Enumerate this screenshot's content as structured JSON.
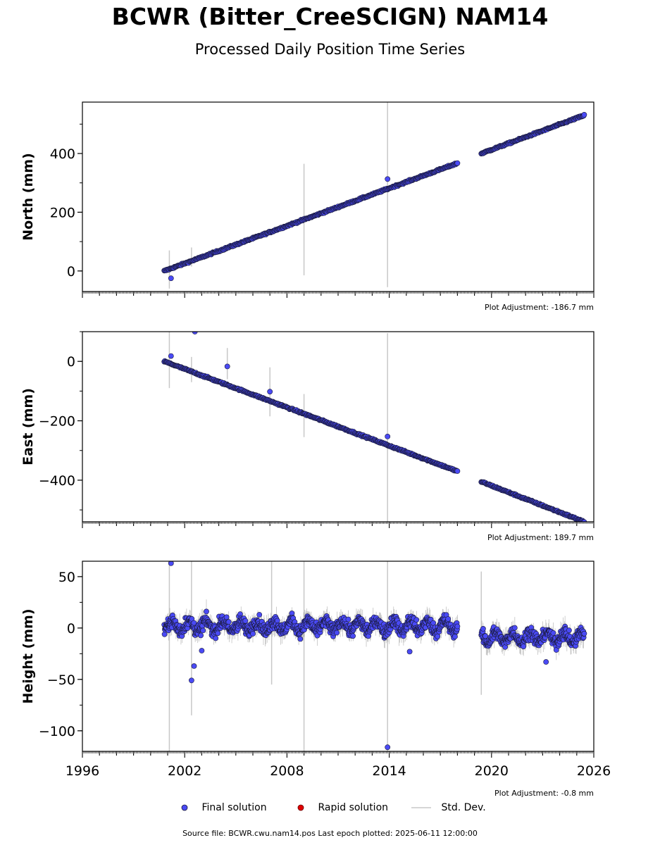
{
  "title": "BCWR (Bitter_CreeSCIGN) NAM14",
  "subtitle": "Processed Daily Position Time Series",
  "colors": {
    "final": "#4a4af5",
    "rapid": "#e00000",
    "stddev": "#c8c8c8",
    "edge": "#1a1a3a"
  },
  "legend": {
    "final_label": "Final solution",
    "rapid_label": "Rapid solution",
    "stddev_label": "Std. Dev."
  },
  "source_text": "Source file: BCWR.cwu.nam14.pos  Last epoch plotted: 2025-06-11 12:00:00",
  "chart_data": [
    {
      "type": "scatter",
      "ylabel": "North (mm)",
      "adjustment": "Plot Adjustment: -186.7 mm",
      "xlim": [
        1996,
        2026
      ],
      "ylim": [
        -70,
        575
      ],
      "yticks": [
        0,
        200,
        400
      ],
      "ytick_labels": [
        "0",
        "200",
        "400"
      ],
      "gap": [
        2018.0,
        2019.4
      ],
      "trend": {
        "start": [
          2000.8,
          0
        ],
        "end": [
          2025.44,
          530
        ],
        "rate_break": [
          [
            2018.0,
            367
          ],
          [
            2019.4,
            400
          ]
        ]
      },
      "outliers": [
        [
          2001.2,
          -25
        ],
        [
          2013.9,
          313
        ]
      ],
      "errorbars": [
        [
          2001.1,
          -60,
          70
        ],
        [
          2002.4,
          15,
          80
        ],
        [
          2009.0,
          -15,
          365
        ],
        [
          2013.9,
          -55,
          580
        ]
      ]
    },
    {
      "type": "scatter",
      "ylabel": "East (mm)",
      "adjustment": "Plot Adjustment: 189.7 mm",
      "xlim": [
        1996,
        2026
      ],
      "ylim": [
        -540,
        100
      ],
      "yticks": [
        -400,
        -200,
        0
      ],
      "ytick_labels": [
        "−400",
        "−200",
        "0"
      ],
      "gap": [
        2018.0,
        2019.4
      ],
      "trend": {
        "start": [
          2000.8,
          0
        ],
        "end": [
          2025.44,
          -540
        ],
        "rate_break": [
          [
            2018.0,
            -370
          ],
          [
            2019.4,
            -405
          ]
        ]
      },
      "outliers": [
        [
          2001.2,
          18
        ],
        [
          2002.6,
          100
        ],
        [
          2004.5,
          -17
        ],
        [
          2007.0,
          -102
        ],
        [
          2013.9,
          -253
        ]
      ],
      "errorbars": [
        [
          2001.1,
          -90,
          100
        ],
        [
          2002.4,
          -70,
          15
        ],
        [
          2004.5,
          -60,
          45
        ],
        [
          2007.0,
          -185,
          -20
        ],
        [
          2009.0,
          -255,
          -110
        ],
        [
          2013.9,
          -540,
          95
        ]
      ]
    },
    {
      "type": "scatter",
      "ylabel": "Height (mm)",
      "adjustment": "Plot Adjustment: -0.8 mm",
      "xlim": [
        1996,
        2026
      ],
      "ylim": [
        -120,
        65
      ],
      "yticks": [
        -100,
        -50,
        0,
        50
      ],
      "ytick_labels": [
        "−100",
        "−50",
        "0",
        "50"
      ],
      "xticks": [
        1996,
        2002,
        2008,
        2014,
        2020,
        2026
      ],
      "xtick_labels": [
        "1996",
        "2002",
        "2008",
        "2014",
        "2020",
        "2026"
      ],
      "gap": [
        2018.0,
        2019.4
      ],
      "segments": [
        [
          2000.8,
          2018.0,
          2
        ],
        [
          2019.4,
          2025.44,
          -9
        ]
      ],
      "outliers": [
        [
          2001.2,
          63
        ],
        [
          2002.4,
          -51
        ],
        [
          2002.55,
          -37
        ],
        [
          2003.0,
          -22
        ],
        [
          2013.9,
          -116
        ],
        [
          2015.2,
          -23
        ],
        [
          2023.2,
          -33
        ]
      ],
      "errorbars": [
        [
          2001.1,
          -120,
          65
        ],
        [
          2002.4,
          -85,
          65
        ],
        [
          2009.0,
          -120,
          65
        ],
        [
          2013.9,
          -120,
          65
        ],
        [
          2007.1,
          -55,
          65
        ],
        [
          2019.4,
          -65,
          55
        ]
      ]
    }
  ]
}
